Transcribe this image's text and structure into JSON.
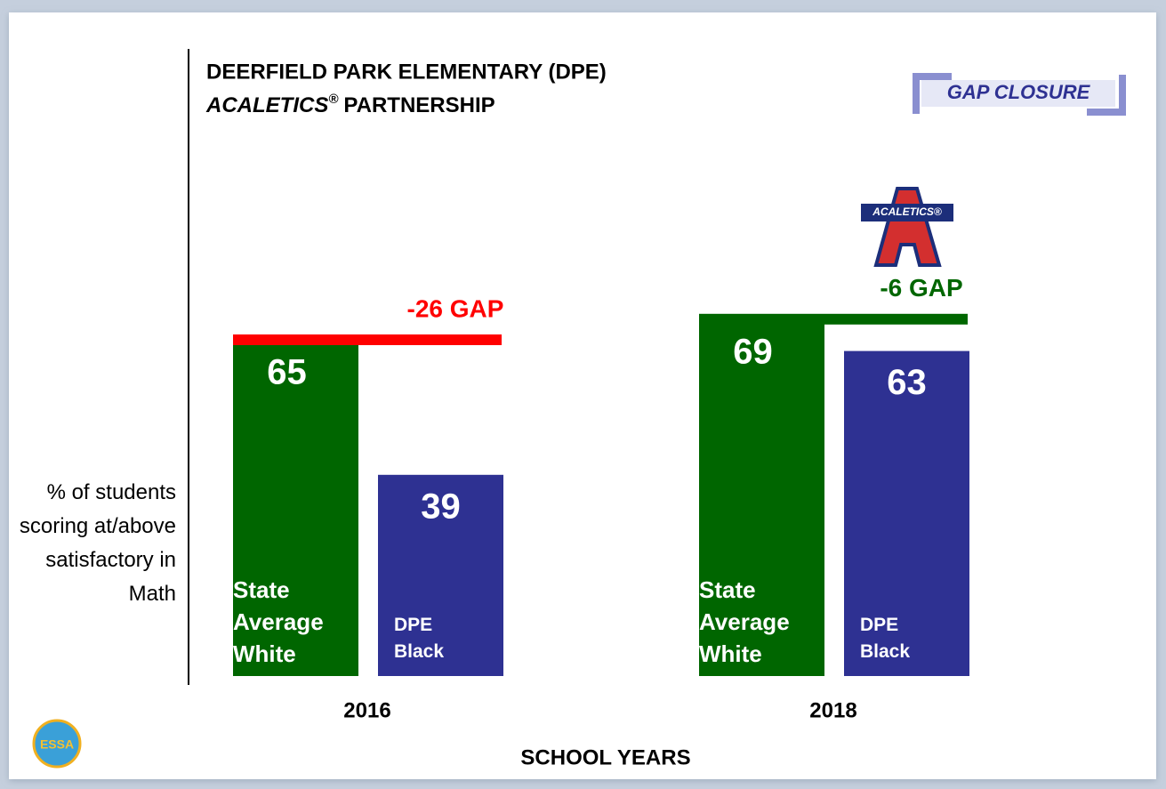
{
  "chart_data": {
    "type": "bar",
    "title": "DEERFIELD PARK ELEMENTARY (DPE)",
    "subtitle": {
      "brand": "ACALETICS",
      "mark": "®",
      "rest": "PARTNERSHIP"
    },
    "badge": "GAP CLOSURE",
    "logos": [
      "ACALETICS®",
      "ESSA"
    ],
    "y_label": "% of students scoring at/above satisfactory in Math",
    "x_label": "SCHOOL YEARS",
    "categories": [
      "2016",
      "2018"
    ],
    "series": [
      {
        "name": "State Average White",
        "color": "#006600",
        "values": [
          65,
          69
        ]
      },
      {
        "name": "DPE Black",
        "color": "#2e3192",
        "values": [
          39,
          63
        ]
      }
    ],
    "gaps": [
      {
        "value": -26,
        "label": "-26 GAP",
        "color": "#ff0000"
      },
      {
        "value": -6,
        "label": "-6 GAP",
        "color": "#006600"
      }
    ],
    "ylim": [
      0,
      100
    ]
  }
}
